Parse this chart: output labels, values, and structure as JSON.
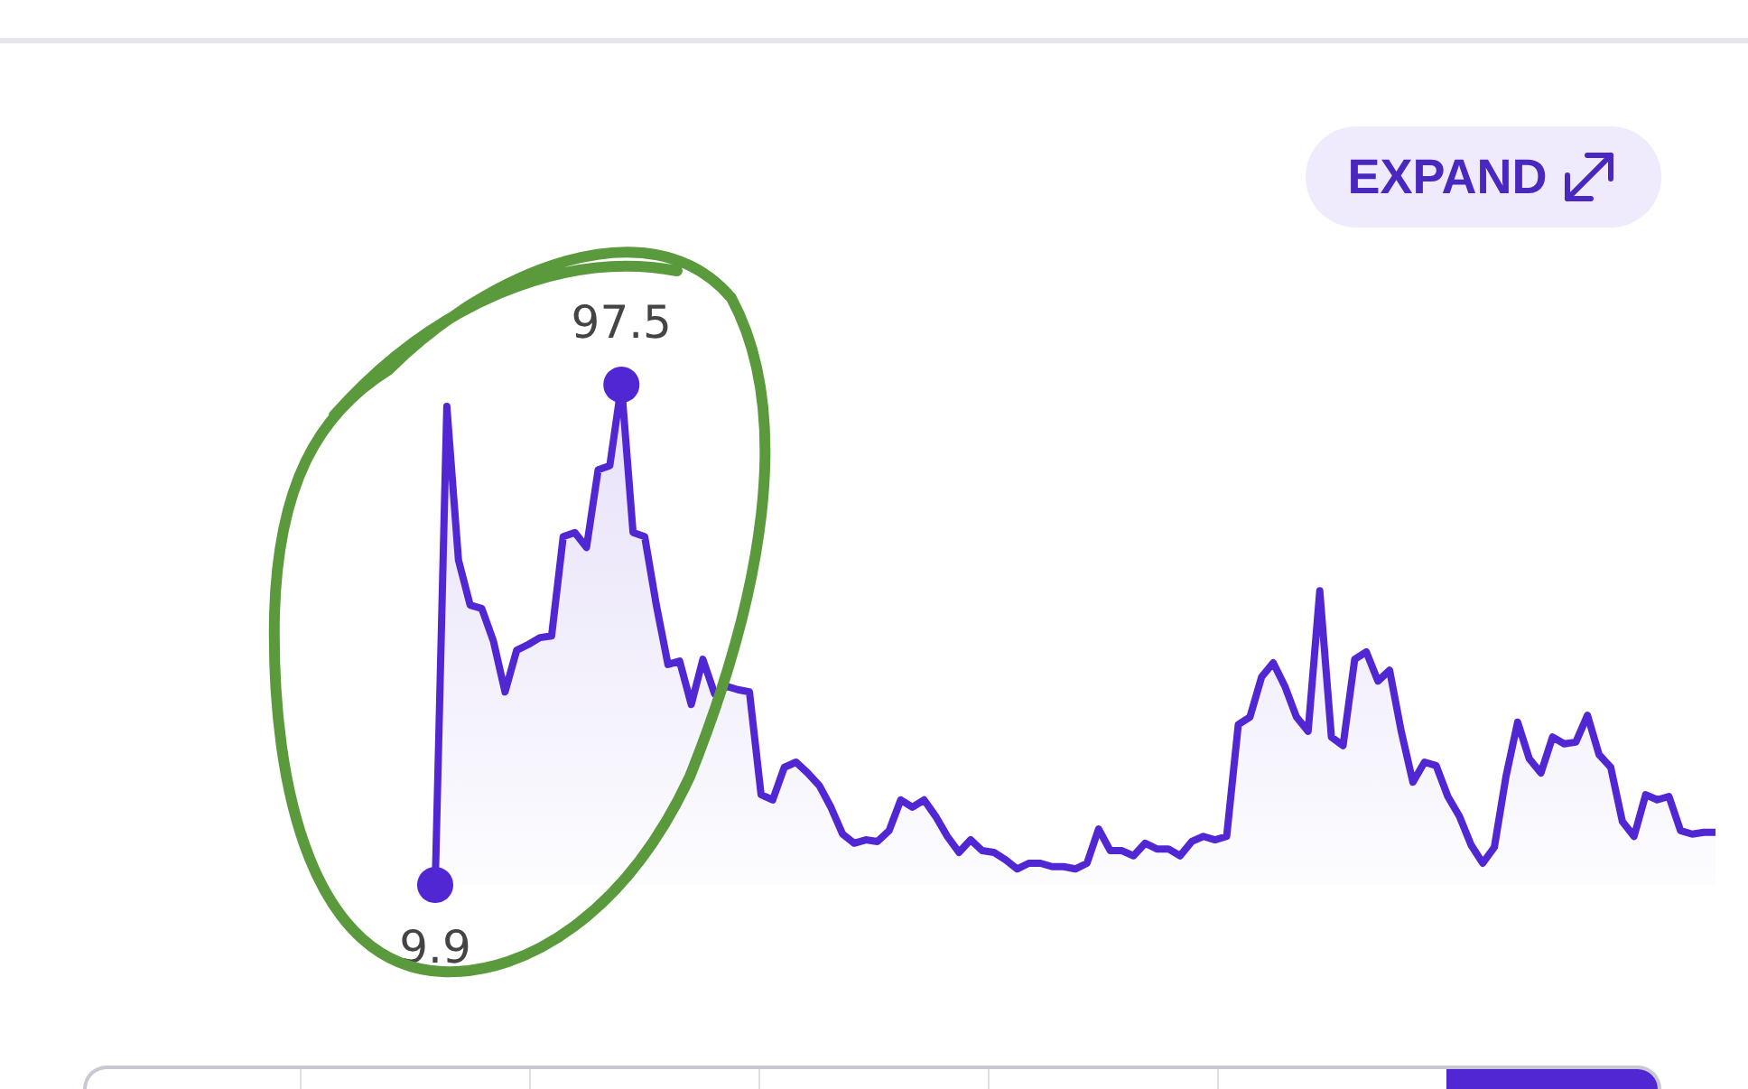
{
  "chart_data": {
    "type": "area",
    "categories": [
      null,
      null,
      null,
      null,
      null,
      null,
      null,
      null,
      null,
      null,
      null,
      null,
      null,
      null,
      null,
      null,
      null,
      null,
      null,
      null,
      null,
      null,
      null,
      null,
      null,
      null,
      null,
      null,
      null,
      null,
      null,
      null,
      null,
      null,
      null,
      null,
      null,
      null,
      null,
      null,
      null,
      null,
      null,
      null,
      null,
      null,
      null,
      null,
      null,
      null,
      null,
      null,
      null,
      null,
      null,
      null,
      null,
      null,
      null,
      null,
      null,
      null,
      null,
      null,
      null,
      null,
      null,
      null,
      null,
      null,
      null,
      null,
      null,
      null,
      null,
      null,
      null,
      null,
      null,
      null,
      null,
      null,
      null,
      null,
      null,
      null,
      null,
      null,
      null,
      null,
      null,
      null,
      null,
      null,
      null,
      null,
      null,
      null,
      null,
      null,
      null,
      null,
      null,
      null,
      null,
      null,
      null,
      null,
      null,
      null,
      null
    ],
    "series": [
      {
        "color": "#5126d3",
        "values": [
          9.9,
          93.7,
          66.8,
          58.9,
          58.3,
          52.6,
          43.7,
          51.0,
          52.0,
          53.2,
          53.5,
          70.9,
          71.6,
          69.0,
          82.6,
          83.3,
          97.5,
          71.6,
          70.9,
          58.9,
          48.5,
          49.1,
          41.5,
          49.4,
          43.4,
          44.7,
          44.1,
          43.7,
          25.7,
          24.8,
          30.5,
          31.4,
          29.5,
          27.3,
          23.5,
          18.8,
          17.2,
          17.8,
          17.5,
          19.4,
          24.8,
          23.5,
          24.8,
          21.9,
          18.4,
          15.6,
          17.8,
          15.9,
          15.6,
          14.3,
          12.7,
          13.7,
          13.7,
          13.1,
          13.1,
          12.7,
          13.7,
          19.7,
          15.9,
          15.9,
          15.0,
          17.2,
          16.2,
          16.2,
          15.0,
          17.5,
          18.4,
          17.8,
          18.4,
          38.0,
          39.3,
          46.3,
          48.8,
          44.7,
          39.3,
          36.8,
          61.4,
          35.8,
          34.3,
          49.4,
          50.7,
          45.6,
          47.5,
          36.8,
          27.9,
          31.4,
          30.8,
          25.4,
          21.9,
          16.9,
          13.7,
          16.5,
          28.9,
          38.4,
          32.0,
          29.5,
          35.8,
          34.6,
          34.9,
          39.6,
          32.7,
          30.5,
          21.0,
          18.4,
          25.7,
          24.8,
          25.4,
          19.4,
          18.8,
          19.1,
          19.1
        ],
        "value_labels": [
          "9.9",
          null,
          null,
          null,
          null,
          null,
          null,
          null,
          null,
          null,
          null,
          null,
          null,
          null,
          null,
          null,
          "97.5",
          null,
          null,
          null,
          null,
          null,
          null,
          null,
          null,
          null,
          null,
          null,
          null,
          null,
          null,
          null,
          null,
          null,
          null,
          null,
          null,
          null,
          null,
          null,
          null,
          null,
          null,
          null,
          null,
          null,
          null,
          null,
          null,
          null,
          null,
          null,
          null,
          null,
          null,
          null,
          null,
          null,
          null,
          null,
          null,
          null,
          null,
          null,
          null,
          null,
          null,
          null,
          null,
          null,
          null,
          null,
          null,
          null,
          null,
          null,
          null,
          null,
          null,
          null,
          null,
          null,
          null,
          null,
          null,
          null,
          null,
          null,
          null,
          null,
          null,
          null,
          null,
          null,
          null,
          null,
          null,
          null,
          null,
          null,
          null,
          null,
          null,
          null,
          null,
          null,
          null,
          null,
          null,
          null,
          null
        ]
      }
    ],
    "annotations": [
      "EXPAND"
    ]
  }
}
